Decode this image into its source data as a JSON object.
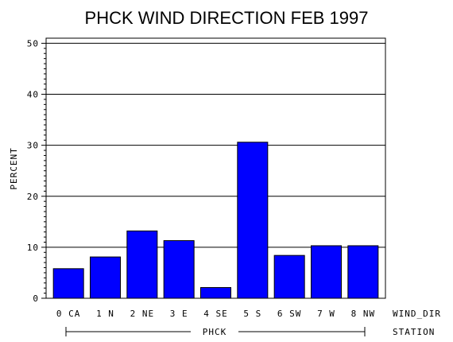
{
  "chart_data": {
    "type": "bar",
    "title": "PHCK WIND DIRECTION FEB 1997",
    "ylabel": "PERCENT",
    "xlabel": "WIND_DIR",
    "group_axis_label": "STATION",
    "group_label": "PHCK",
    "categories": [
      "0 CA",
      "1 N",
      "2 NE",
      "3 E",
      "4 SE",
      "5 S",
      "6 SW",
      "7 W",
      "8 NW"
    ],
    "values": [
      5.8,
      8.1,
      13.2,
      11.3,
      2.1,
      30.6,
      8.4,
      10.3,
      10.3
    ],
    "ylim": [
      0,
      51
    ],
    "yticks": [
      0,
      10,
      20,
      30,
      40,
      50
    ],
    "grid": true,
    "bar_color": "#0000ff"
  }
}
